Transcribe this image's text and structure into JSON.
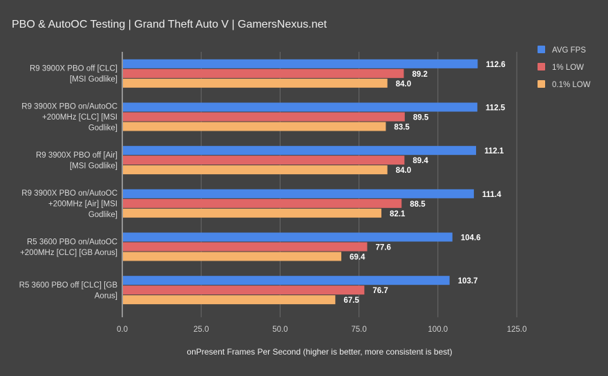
{
  "chart_data": {
    "type": "bar",
    "orientation": "horizontal",
    "title": "PBO & AutoOC Testing | Grand Theft Auto V | GamersNexus.net",
    "xlabel": "onPresent Frames Per Second (higher is better, more consistent is best)",
    "ylabel": "",
    "xlim": [
      0,
      125
    ],
    "xticks": [
      "0.0",
      "25.0",
      "50.0",
      "75.0",
      "100.0",
      "125.0"
    ],
    "grid": true,
    "legend_position": "right",
    "categories": [
      [
        "R9 3900X PBO off [CLC]",
        "[MSI Godlike]"
      ],
      [
        "R9 3900X PBO on/AutoOC",
        "+200MHz [CLC] [MSI",
        "Godlike]"
      ],
      [
        "R9 3900X PBO off [Air]",
        "[MSI Godlike]"
      ],
      [
        "R9 3900X PBO on/AutoOC",
        "+200MHz [Air] [MSI",
        "Godlike]"
      ],
      [
        "R5 3600 PBO on/AutoOC",
        "+200MHz [CLC] [GB Aorus]"
      ],
      [
        "R5 3600 PBO off [CLC] [GB",
        "Aorus]"
      ]
    ],
    "series": [
      {
        "name": "AVG FPS",
        "color": "#4a86e8",
        "values": [
          112.6,
          112.5,
          112.1,
          111.4,
          104.6,
          103.7
        ]
      },
      {
        "name": "1% LOW",
        "color": "#e06666",
        "values": [
          89.2,
          89.5,
          89.4,
          88.5,
          77.6,
          76.7
        ]
      },
      {
        "name": "0.1% LOW",
        "color": "#f6b26b",
        "values": [
          84.0,
          83.5,
          84.0,
          82.1,
          69.4,
          67.5
        ]
      }
    ]
  }
}
